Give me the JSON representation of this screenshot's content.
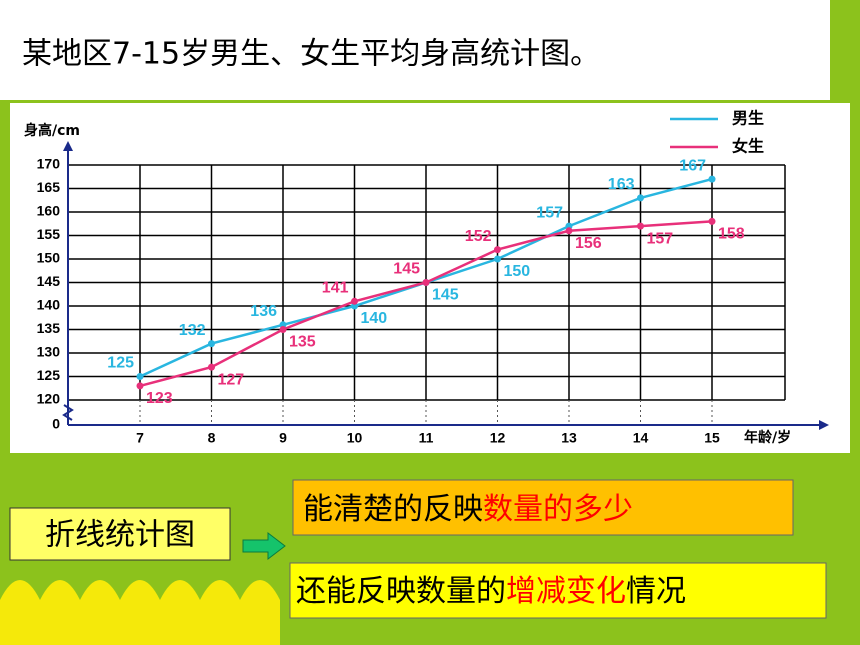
{
  "chart_data": {
    "type": "line",
    "title": "某地区7-15岁男生、女生平均身高统计图。",
    "y_label": "身高/cm",
    "x_label": "年龄/岁",
    "categories": [
      "7",
      "8",
      "9",
      "10",
      "11",
      "12",
      "13",
      "14",
      "15"
    ],
    "series": [
      {
        "name": "男生",
        "color": "#29b6e0",
        "values": [
          125,
          132,
          136,
          140,
          145,
          150,
          157,
          163,
          167
        ]
      },
      {
        "name": "女生",
        "color": "#e8307a",
        "values": [
          123,
          127,
          135,
          141,
          145,
          152,
          156,
          157,
          158
        ]
      }
    ],
    "ylim": [
      0,
      170
    ],
    "axis_break": [
      0,
      120
    ],
    "yticks": [
      0,
      120,
      125,
      130,
      135,
      140,
      145,
      150,
      155,
      160,
      165,
      170
    ],
    "grid": true,
    "legend": "top-right"
  },
  "notes": {
    "label": "折线统计图",
    "point1": [
      "能清楚的反映",
      "数量的多少"
    ],
    "point2": [
      "还能反映数量的",
      "增减变化",
      "情况"
    ],
    "highlight_color": "#ff0000"
  }
}
